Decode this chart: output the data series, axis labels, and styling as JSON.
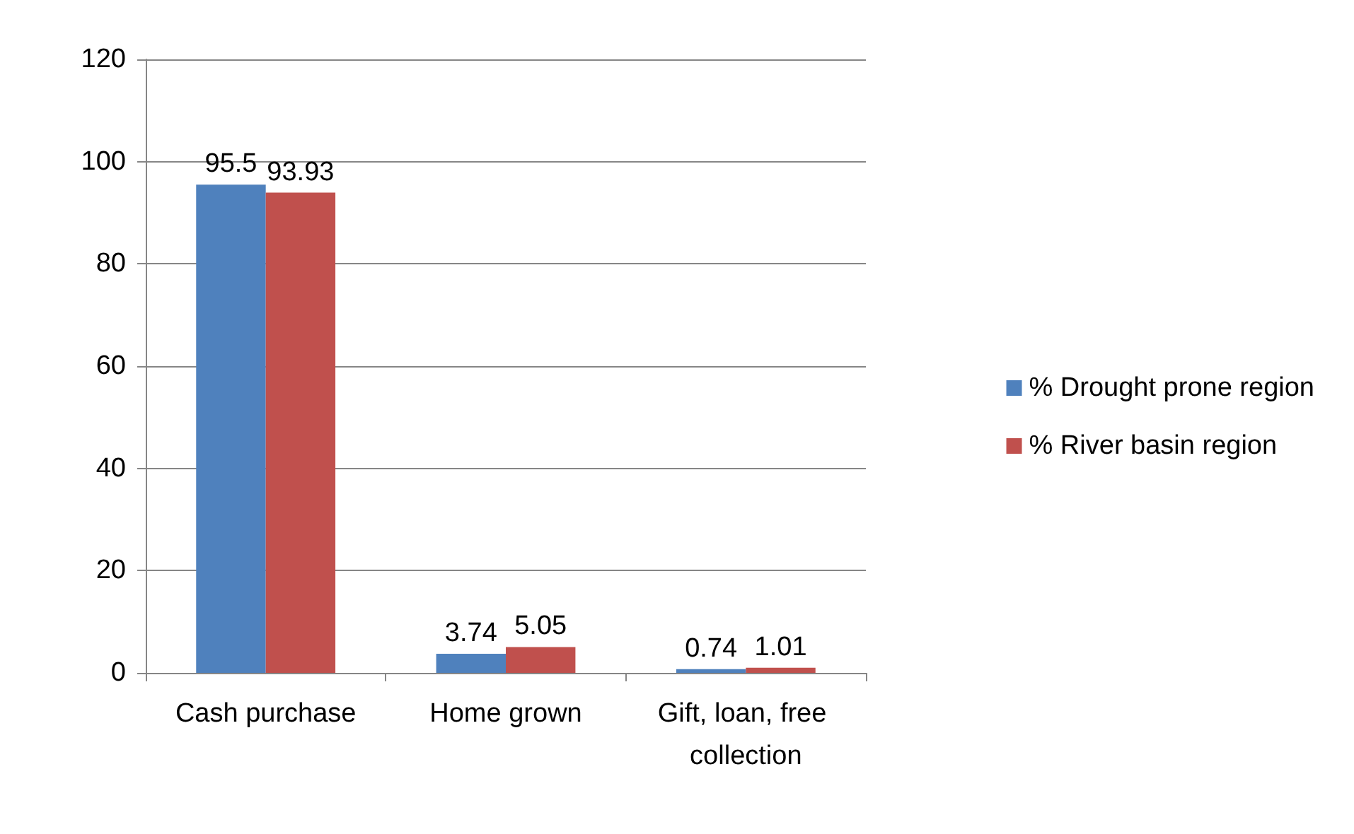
{
  "chart_data": {
    "type": "bar",
    "categories": [
      "Cash purchase",
      "Home grown",
      "Gift, loan, free collection"
    ],
    "series": [
      {
        "name": "% Drought prone region",
        "color": "#4f81bd",
        "values": [
          95.5,
          3.74,
          0.74
        ]
      },
      {
        "name": "% River basin region",
        "color": "#c0504d",
        "values": [
          93.93,
          5.05,
          1.01
        ]
      }
    ],
    "ylim": [
      0,
      120
    ],
    "yticks": [
      0,
      20,
      40,
      60,
      80,
      100,
      120
    ],
    "grid": "y",
    "legend": "right",
    "data_labels": true
  }
}
